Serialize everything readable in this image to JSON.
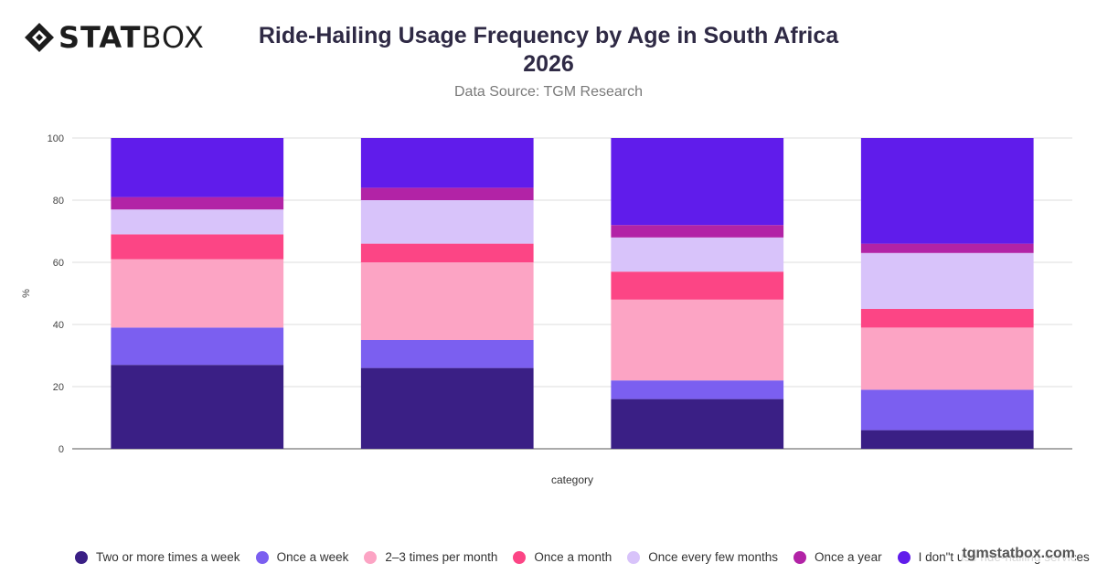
{
  "brand": {
    "logo_bold": "STAT",
    "logo_light": "BOX"
  },
  "header": {
    "title_line1": "Ride-Hailing Usage Frequency by Age in South Africa",
    "title_line2": "2026",
    "subtitle": "Data Source: TGM Research"
  },
  "watermark": "tgmstatbox.com",
  "chart_data": {
    "type": "bar",
    "stacked": true,
    "title": "Ride-Hailing Usage Frequency by Age in South Africa 2026",
    "subtitle": "Data Source: TGM Research",
    "xlabel": "category",
    "ylabel": "%",
    "ylim": [
      0,
      100
    ],
    "yticks": [
      0,
      20,
      40,
      60,
      80,
      100
    ],
    "grid": true,
    "legend_position": "bottom",
    "categories": [
      "",
      "",
      "",
      ""
    ],
    "series": [
      {
        "name": "Two or more times a week",
        "color": "#3a1f85",
        "values": [
          27,
          26,
          16,
          6
        ]
      },
      {
        "name": "Once a week",
        "color": "#7b5ff0",
        "values": [
          12,
          9,
          6,
          13
        ]
      },
      {
        "name": "2–3 times per month",
        "color": "#fca4c4",
        "values": [
          22,
          25,
          26,
          20
        ]
      },
      {
        "name": "Once a month",
        "color": "#fc4585",
        "values": [
          8,
          6,
          9,
          6
        ]
      },
      {
        "name": "Once every few months",
        "color": "#d8c3fa",
        "values": [
          8,
          14,
          11,
          18
        ]
      },
      {
        "name": "Once a year",
        "color": "#b223a6",
        "values": [
          4,
          4,
          4,
          3
        ]
      },
      {
        "name": "I don\"t use ride-hailing services",
        "color": "#601ceb",
        "values": [
          19,
          16,
          28,
          34
        ]
      }
    ]
  }
}
